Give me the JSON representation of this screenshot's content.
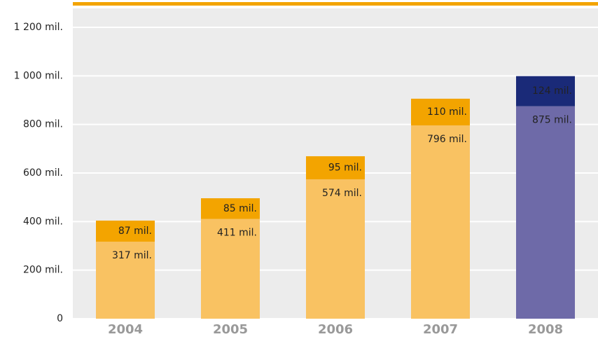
{
  "chart_data": {
    "type": "stacked_bar",
    "categories": [
      "2004",
      "2005",
      "2006",
      "2007",
      "2008"
    ],
    "series": [
      {
        "colors": [
          "#f9c262",
          "#f9c262",
          "#f9c262",
          "#f9c262",
          "#6e6aa8"
        ],
        "values": [
          317,
          411,
          574,
          796,
          875
        ],
        "value_labels": [
          "317 mil.",
          "411 mil.",
          "574 mil.",
          "796 mil.",
          "875 mil."
        ]
      },
      {
        "colors": [
          "#f3a400",
          "#f3a400",
          "#f3a400",
          "#f3a400",
          "#1a2a78"
        ],
        "values": [
          87,
          85,
          95,
          110,
          124
        ],
        "value_labels": [
          "87 mil.",
          "85 mil.",
          "95 mil.",
          "110 mil.",
          "124 mil."
        ]
      }
    ],
    "ylim": [
      0,
      1200
    ],
    "yticks": [
      0,
      {
        "value": 200,
        "label": "200 mil."
      },
      {
        "value": 400,
        "label": "400 mil."
      },
      {
        "value": 600,
        "label": "600 mil."
      },
      {
        "value": 800,
        "label": "800 mil."
      },
      {
        "value": 1000,
        "label": "1 000 mil."
      },
      {
        "value": 1200,
        "label": "1 200 mil."
      }
    ],
    "grid": true
  }
}
